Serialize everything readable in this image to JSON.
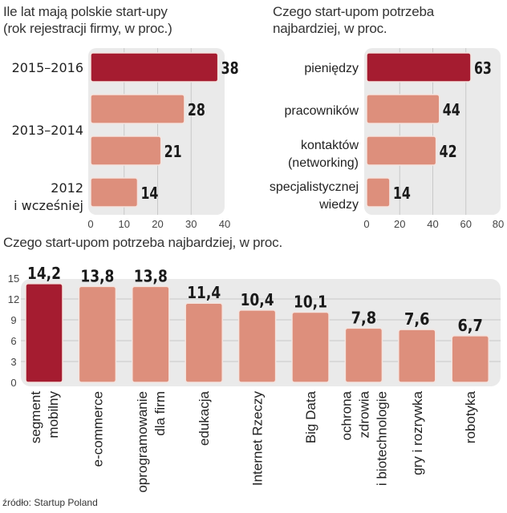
{
  "colors": {
    "highlight": "#a51c30",
    "normal": "#dd8f7c",
    "panel": "#eaeaea",
    "grid": "#c8c8c8"
  },
  "source": "źródło: Startup Poland",
  "chart_data": [
    {
      "type": "bar",
      "orientation": "horizontal",
      "title": "Ile lat mają polskie start-upy (rok rejestracji firmy, w proc.)",
      "title_lines": [
        "Ile lat mają polskie start-upy",
        "(rok rejestracji firmy, w proc.)"
      ],
      "category_labels": [
        {
          "lines": [
            "2015–2016"
          ]
        },
        {
          "lines": [
            "2013–2014"
          ]
        },
        {
          "lines": [
            "2012",
            "i wcześniej"
          ]
        }
      ],
      "bars": [
        {
          "group": 0,
          "value": 38,
          "label": "38",
          "highlight": true
        },
        {
          "group": 1,
          "value": 28,
          "label": "28",
          "highlight": false
        },
        {
          "group": 1,
          "value": 21,
          "label": "21",
          "highlight": false
        },
        {
          "group": 2,
          "value": 14,
          "label": "14",
          "highlight": false
        }
      ],
      "xlim": [
        0,
        40
      ],
      "xticks": [
        0,
        10,
        20,
        30,
        40
      ],
      "xlabel": "",
      "ylabel": "",
      "grid": true
    },
    {
      "type": "bar",
      "orientation": "horizontal",
      "title": "Czego start-upom potrzeba najbardziej, w proc.",
      "title_lines": [
        "Czego start-upom potrzeba",
        "najbardziej, w proc."
      ],
      "categories": [
        "pieniędzy",
        "pracowników",
        "kontaktów (networking)",
        "specjalistycznej wiedzy"
      ],
      "category_lines": [
        [
          "pieniędzy"
        ],
        [
          "pracowników"
        ],
        [
          "kontaktów",
          "(networking)"
        ],
        [
          "specjalistycznej",
          "wiedzy"
        ]
      ],
      "values": [
        63,
        44,
        42,
        14
      ],
      "highlight": [
        true,
        false,
        false,
        false
      ],
      "xlim": [
        0,
        80
      ],
      "xticks": [
        0,
        20,
        40,
        60,
        80
      ],
      "xlabel": "",
      "ylabel": "",
      "grid": true
    },
    {
      "type": "bar",
      "orientation": "vertical",
      "title": "Czego start-upom potrzeba najbardziej, w proc.",
      "categories": [
        "segment mobilny",
        "e-commerce",
        "oprogramowanie dla firm",
        "edukacja",
        "Internet Rzeczy",
        "Big Data",
        "ochrona zdrowia i biotechnologie",
        "gry i rozrywka",
        "robotyka"
      ],
      "category_lines": [
        [
          "segment",
          "mobilny"
        ],
        [
          "e-commerce"
        ],
        [
          "oprogramowanie",
          "dla firm"
        ],
        [
          "edukacja"
        ],
        [
          "Internet Rzeczy"
        ],
        [
          "Big Data"
        ],
        [
          "ochrona",
          "zdrowia",
          "i biotechnologie"
        ],
        [
          "gry i rozrywka"
        ],
        [
          "robotyka"
        ]
      ],
      "values": [
        14.2,
        13.8,
        13.8,
        11.4,
        10.4,
        10.1,
        7.8,
        7.6,
        6.7
      ],
      "value_labels": [
        "14,2",
        "13,8",
        "13,8",
        "11,4",
        "10,4",
        "10,1",
        "7,8",
        "7,6",
        "6,7"
      ],
      "highlight": [
        true,
        false,
        false,
        false,
        false,
        false,
        false,
        false,
        false
      ],
      "ylim": [
        0,
        15
      ],
      "yticks": [
        0,
        3,
        6,
        9,
        12,
        15
      ],
      "xlabel": "",
      "ylabel": "",
      "grid": true
    }
  ]
}
